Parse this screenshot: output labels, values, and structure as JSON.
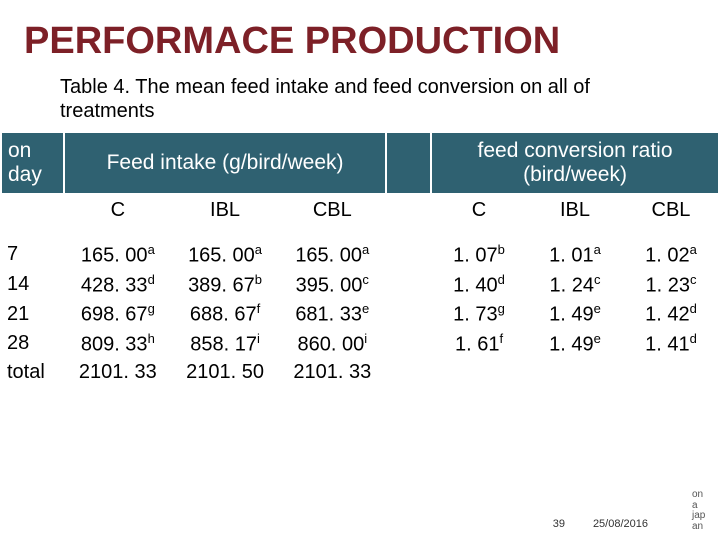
{
  "title": "PERFORMACE PRODUCTION",
  "caption": "Table 4. The mean feed intake  and feed conversion on all of treatments",
  "colors": {
    "title": "#7d2027",
    "header_bg": "#2f6171",
    "header_fg": "#ffffff",
    "body_bg": "#ffffff",
    "text": "#000000"
  },
  "header": {
    "corner": "on day",
    "group1": "Feed intake (g/bird/week)",
    "group2": "feed conversion ratio (bird/week)",
    "sub": [
      "C",
      "IBL",
      "CBL",
      "C",
      "IBL",
      "CBL"
    ]
  },
  "rows": [
    {
      "day": "7",
      "intake": [
        {
          "v": "165. 00",
          "s": "a"
        },
        {
          "v": "165. 00",
          "s": "a"
        },
        {
          "v": "165. 00",
          "s": "a"
        }
      ],
      "conv": [
        {
          "v": "1. 07",
          "s": "b"
        },
        {
          "v": "1. 01",
          "s": "a"
        },
        {
          "v": "1. 02",
          "s": "a"
        }
      ]
    },
    {
      "day": "14",
      "intake": [
        {
          "v": "428. 33",
          "s": "d"
        },
        {
          "v": "389. 67",
          "s": "b"
        },
        {
          "v": "395. 00",
          "s": "c"
        }
      ],
      "conv": [
        {
          "v": "1. 40",
          "s": "d"
        },
        {
          "v": "1. 24",
          "s": "c"
        },
        {
          "v": "1. 23",
          "s": "c"
        }
      ]
    },
    {
      "day": "21",
      "intake": [
        {
          "v": "698. 67",
          "s": "g"
        },
        {
          "v": "688. 67",
          "s": "f"
        },
        {
          "v": "681. 33",
          "s": "e"
        }
      ],
      "conv": [
        {
          "v": "1. 73",
          "s": "g"
        },
        {
          "v": "1. 49",
          "s": "e"
        },
        {
          "v": "1. 42",
          "s": "d"
        }
      ]
    },
    {
      "day": "28",
      "intake": [
        {
          "v": "809. 33",
          "s": "h"
        },
        {
          "v": "858. 17",
          "s": "i"
        },
        {
          "v": "860. 00",
          "s": "i"
        }
      ],
      "conv": [
        {
          "v": "1. 61",
          "s": "f"
        },
        {
          "v": "1. 49",
          "s": "e"
        },
        {
          "v": "1. 41",
          "s": "d"
        }
      ]
    },
    {
      "day": "total",
      "intake": [
        {
          "v": "2101. 33",
          "s": ""
        },
        {
          "v": "2101. 50",
          "s": ""
        },
        {
          "v": "2101. 33",
          "s": ""
        }
      ],
      "conv": [
        {
          "v": "",
          "s": ""
        },
        {
          "v": "",
          "s": ""
        },
        {
          "v": "",
          "s": ""
        }
      ]
    }
  ],
  "footer": {
    "page": "39",
    "date": "25/08/2016",
    "side": [
      "on",
      "a",
      "jap",
      "an"
    ]
  }
}
